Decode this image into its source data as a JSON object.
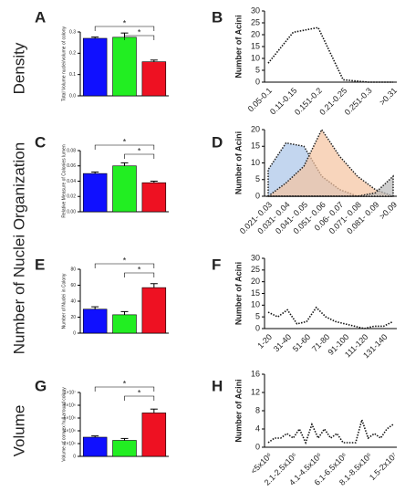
{
  "row_labels": [
    "Density",
    "Number of Nuclei Organization",
    "Volume"
  ],
  "chart_data": [
    {
      "type": "bar",
      "panel": "A",
      "ylabel": "Total Volume nuclei/volume of colony",
      "values": [
        0.27,
        0.275,
        0.16
      ],
      "errors": [
        0.006,
        0.02,
        0.008
      ],
      "colors": [
        "#1010ff",
        "#22ee22",
        "#ee1122"
      ],
      "ylim": [
        0,
        0.3
      ],
      "yticks": [
        {
          "value": 0,
          "label": "0.0"
        },
        0.1,
        0.2,
        0.3
      ],
      "annotations": [
        "*",
        "*"
      ]
    },
    {
      "type": "line",
      "panel": "B",
      "ylabel": "Number of Acini",
      "categories": [
        "0.05-0.1",
        "0.11-0.15",
        "0.151-0.2",
        "0.21-0.25",
        "0.251-0.3",
        ">0.31"
      ],
      "series": [
        {
          "color": "#111111",
          "values": [
            8,
            21,
            23,
            1,
            0,
            0
          ]
        }
      ],
      "ylim": [
        0,
        30
      ],
      "yticks": [
        0,
        5,
        10,
        15,
        20,
        25,
        30
      ]
    },
    {
      "type": "bar",
      "panel": "C",
      "ylabel": "Relative Measure of Colonies lumen",
      "values": [
        0.05,
        0.06,
        0.038
      ],
      "errors": [
        0.002,
        0.004,
        0.002
      ],
      "colors": [
        "#1010ff",
        "#22ee22",
        "#ee1122"
      ],
      "ylim": [
        0,
        0.08
      ],
      "yticks": [
        {
          "value": 0,
          "label": "0.00"
        },
        0.02,
        0.04,
        0.06,
        0.08
      ],
      "annotations": [
        "*",
        "*"
      ]
    },
    {
      "type": "area",
      "panel": "D",
      "ylabel": "Number of Acini",
      "categories": [
        "0.021- 0.03",
        "0.031- 0.04",
        "0.041- 0.05",
        "0.051- 0.06",
        "0.06- 0.07",
        "0.071- 0.08",
        "0.081- 0.09",
        ">0.09"
      ],
      "series": [
        {
          "color": "#a9c4e8",
          "values": [
            8,
            16,
            15,
            6,
            2,
            0,
            0,
            0
          ]
        },
        {
          "color": "#f5c3a0",
          "values": [
            0,
            4,
            9,
            20,
            12,
            6,
            2,
            0
          ]
        },
        {
          "color": "#bbbbbb",
          "values": [
            0,
            0,
            0,
            0,
            0,
            0,
            1,
            6
          ]
        }
      ],
      "ylim": [
        0,
        20
      ],
      "yticks": [
        0,
        5,
        10,
        15,
        20
      ]
    },
    {
      "type": "bar",
      "panel": "E",
      "ylabel": "Number of Nuclei in Colony",
      "values": [
        30,
        23,
        57
      ],
      "errors": [
        3,
        4,
        5
      ],
      "colors": [
        "#1010ff",
        "#22ee22",
        "#ee1122"
      ],
      "ylim": [
        0,
        80
      ],
      "yticks": [
        0,
        20,
        40,
        60,
        80
      ],
      "annotations": [
        "*",
        "*"
      ]
    },
    {
      "type": "line",
      "panel": "F",
      "ylabel": "Number of Acini",
      "categories": [
        "1-20",
        null,
        "31-40",
        null,
        "51-60",
        null,
        "71-80",
        null,
        "91-100",
        null,
        "111-120",
        null,
        "131-140",
        null
      ],
      "series": [
        {
          "color": "#111111",
          "values": [
            7,
            5,
            8,
            2,
            3,
            9,
            5,
            3,
            2,
            1,
            0,
            1,
            1,
            3
          ]
        }
      ],
      "ylim": [
        0,
        30
      ],
      "yticks": [
        0,
        5,
        10,
        15,
        20,
        25,
        30
      ]
    },
    {
      "type": "bar",
      "panel": "G",
      "ylabel": "Volume of convex hull around colony",
      "values": [
        3000000,
        2500000,
        6800000
      ],
      "errors": [
        200000,
        300000,
        600000
      ],
      "colors": [
        "#1010ff",
        "#22ee22",
        "#ee1122"
      ],
      "ylim": [
        0,
        10000000
      ],
      "yticks": [
        0,
        {
          "value": 2000000,
          "label": "2×10⁶"
        },
        {
          "value": 4000000,
          "label": "4×10⁶"
        },
        {
          "value": 6000000,
          "label": "6×10⁶"
        },
        {
          "value": 8000000,
          "label": "8×10⁶"
        },
        {
          "value": 10000000,
          "label": "1×10⁷"
        }
      ],
      "annotations": [
        "*",
        "*"
      ]
    },
    {
      "type": "line",
      "panel": "H",
      "ylabel": "Number of Acini",
      "categories": [
        "<5x10⁶",
        null,
        null,
        null,
        "2.1-2.5x10⁶",
        null,
        null,
        null,
        "4.1-4.5x10⁶",
        null,
        null,
        null,
        "6.1-6.5x10⁶",
        null,
        null,
        null,
        "8.1-8.5x10⁶",
        null,
        null,
        null,
        "1.5-2x10⁷"
      ],
      "series": [
        {
          "color": "#111111",
          "values": [
            1,
            2,
            2,
            3,
            2,
            4,
            1,
            5,
            2,
            4,
            2,
            3,
            1,
            1,
            1,
            6,
            2,
            3,
            2,
            4,
            5
          ]
        }
      ],
      "ylim": [
        0,
        16
      ],
      "yticks": [
        0,
        4,
        8,
        12,
        16
      ]
    }
  ]
}
